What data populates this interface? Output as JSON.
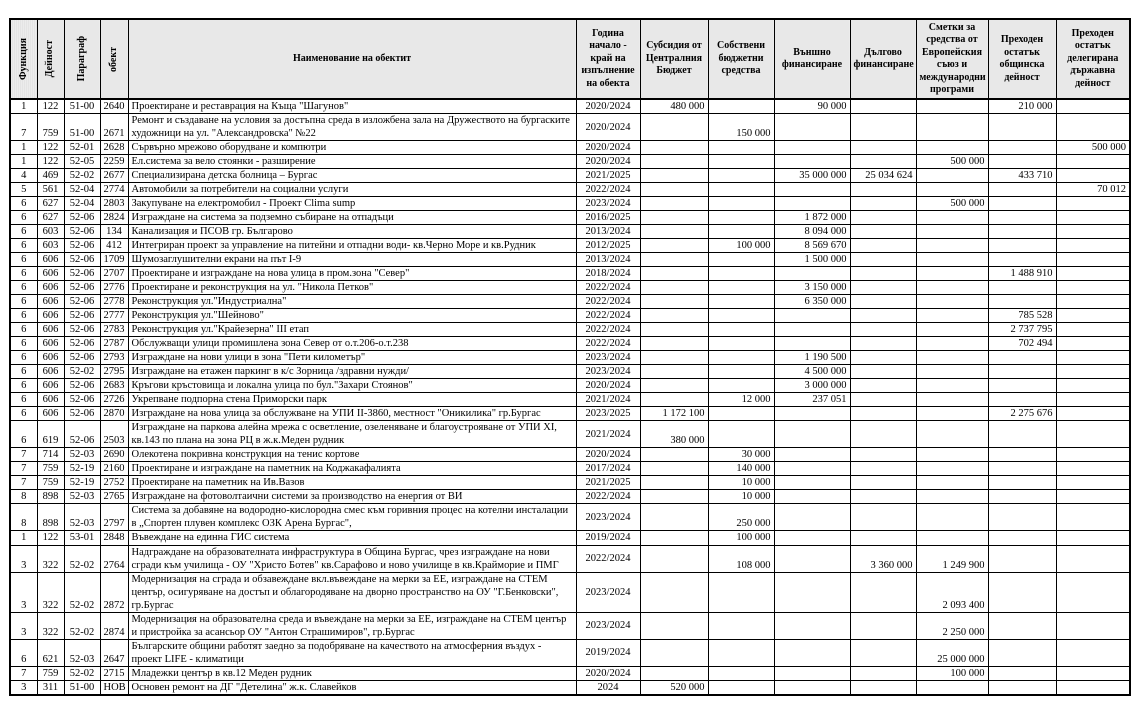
{
  "table": {
    "columns": [
      "Функция",
      "Дейност",
      "Параграф",
      "обект",
      "Наименование на обектит",
      "Година начало - край на изпълнение на обекта",
      "Субсидия от Централния Бюджет",
      "Собствени бюджетни средства",
      "Външно финансиране",
      "Дългово финансиране",
      "Сметки за средства от Европейския съюз и международни програми",
      "Преходен остатък общинска дейност",
      "Преходен остатък делегирана държавна дейност"
    ],
    "column_keys": [
      "function",
      "activity",
      "paragraph",
      "object",
      "object-name",
      "years",
      "subsidy-central-budget",
      "own-budget-funds",
      "external-financing",
      "debt-financing",
      "eu-and-international-funds",
      "carryover-municipal",
      "carryover-state"
    ],
    "rows": [
      [
        "1",
        "122",
        "51-00",
        "2640",
        "Проектиране и реставрация на Къща \"Шагунов\"",
        "2020/2024",
        "480 000",
        "",
        "90 000",
        "",
        "",
        "210 000",
        ""
      ],
      [
        "7",
        "759",
        "51-00",
        "2671",
        "Ремонт и създаване на условия за достъпна среда в изложбена зала на Дружеството на бургаските художници на ул. \"Александровска\" №22",
        "2020/2024",
        "",
        "150 000",
        "",
        "",
        "",
        "",
        ""
      ],
      [
        "1",
        "122",
        "52-01",
        "2628",
        "Сървърно мрежово оборудване и компютри",
        "2020/2024",
        "",
        "",
        "",
        "",
        "",
        "",
        "500 000"
      ],
      [
        "1",
        "122",
        "52-05",
        "2259",
        "Ел.система за вело стоянки - разширение",
        "2020/2024",
        "",
        "",
        "",
        "",
        "500 000",
        "",
        ""
      ],
      [
        "4",
        "469",
        "52-02",
        "2677",
        "Специализирана детска болница – Бургас",
        "2021/2025",
        "",
        "",
        "35 000 000",
        "25 034 624",
        "",
        "433 710",
        ""
      ],
      [
        "5",
        "561",
        "52-04",
        "2774",
        "Автомобили за потребители на социални услуги",
        "2022/2024",
        "",
        "",
        "",
        "",
        "",
        "",
        "70 012"
      ],
      [
        "6",
        "627",
        "52-04",
        "2803",
        "Закупуване на електромобил - Проект Clima sump",
        "2023/2024",
        "",
        "",
        "",
        "",
        "500 000",
        "",
        ""
      ],
      [
        "6",
        "627",
        "52-06",
        "2824",
        "Изграждане на система за подземно събиране на отпадъци",
        "2016/2025",
        "",
        "",
        "1 872 000",
        "",
        "",
        "",
        ""
      ],
      [
        "6",
        "603",
        "52-06",
        "134",
        "Канализация и ПСОВ гр. Българово",
        "2013/2024",
        "",
        "",
        "8 094 000",
        "",
        "",
        "",
        ""
      ],
      [
        "6",
        "603",
        "52-06",
        "412",
        "Интегриран проект за управление на питейни и отпадни води- кв.Черно Море и кв.Рудник",
        "2012/2025",
        "",
        "100 000",
        "8 569 670",
        "",
        "",
        "",
        ""
      ],
      [
        "6",
        "606",
        "52-06",
        "1709",
        "Шумозаглушителни екрани на път I-9",
        "2013/2024",
        "",
        "",
        "1 500 000",
        "",
        "",
        "",
        ""
      ],
      [
        "6",
        "606",
        "52-06",
        "2707",
        "Проектиране и изграждане на нова улица в пром.зона \"Север\"",
        "2018/2024",
        "",
        "",
        "",
        "",
        "",
        "1 488 910",
        ""
      ],
      [
        "6",
        "606",
        "52-06",
        "2776",
        "Проектиране и реконструкция на ул. \"Никола Петков\"",
        "2022/2024",
        "",
        "",
        "3 150 000",
        "",
        "",
        "",
        ""
      ],
      [
        "6",
        "606",
        "52-06",
        "2778",
        "Реконструкция ул.\"Индустриална\"",
        "2022/2024",
        "",
        "",
        "6 350 000",
        "",
        "",
        "",
        ""
      ],
      [
        "6",
        "606",
        "52-06",
        "2777",
        "Реконструкция ул.\"Шейново\"",
        "2022/2024",
        "",
        "",
        "",
        "",
        "",
        "785 528",
        ""
      ],
      [
        "6",
        "606",
        "52-06",
        "2783",
        "Реконструкция ул.\"Крайезерна\" III етап",
        "2022/2024",
        "",
        "",
        "",
        "",
        "",
        "2 737 795",
        ""
      ],
      [
        "6",
        "606",
        "52-06",
        "2787",
        "Обслужващи улици промишлена зона Север от о.т.206-о.т.238",
        "2022/2024",
        "",
        "",
        "",
        "",
        "",
        "702 494",
        ""
      ],
      [
        "6",
        "606",
        "52-06",
        "2793",
        "Изграждане на нови улици в зона \"Пети километър\"",
        "2023/2024",
        "",
        "",
        "1 190 500",
        "",
        "",
        "",
        ""
      ],
      [
        "6",
        "606",
        "52-02",
        "2795",
        "Изграждане на етажен паркинг в к/с Зорница /здравни нужди/",
        "2023/2024",
        "",
        "",
        "4 500 000",
        "",
        "",
        "",
        ""
      ],
      [
        "6",
        "606",
        "52-06",
        "2683",
        "Кръгови кръстовища и локална улица по бул.\"Захари Стоянов\"",
        "2020/2024",
        "",
        "",
        "3 000 000",
        "",
        "",
        "",
        ""
      ],
      [
        "6",
        "606",
        "52-06",
        "2726",
        "Укрепване подпорна стена Приморски парк",
        "2021/2024",
        "",
        "12 000",
        "237 051",
        "",
        "",
        "",
        ""
      ],
      [
        "6",
        "606",
        "52-06",
        "2870",
        "Изграждане на нова улица за обслужване на УПИ II-3860, местност \"Оникилика\" гр.Бургас",
        "2023/2025",
        "1 172 100",
        "",
        "",
        "",
        "",
        "2 275 676",
        ""
      ],
      [
        "6",
        "619",
        "52-06",
        "2503",
        "Изграждане на паркова алейна мрежа с осветление, озеленяване и благоустрояване от УПИ XI, кв.143 по плана на зона РЦ в ж.к.Меден рудник",
        "2021/2024",
        "380 000",
        "",
        "",
        "",
        "",
        "",
        ""
      ],
      [
        "7",
        "714",
        "52-03",
        "2690",
        "Олекотена покривна конструкция на тенис кортове",
        "2020/2024",
        "",
        "30 000",
        "",
        "",
        "",
        "",
        ""
      ],
      [
        "7",
        "759",
        "52-19",
        "2160",
        "Проектиране и изграждане на паметник на Коджакафалията",
        "2017/2024",
        "",
        "140 000",
        "",
        "",
        "",
        "",
        ""
      ],
      [
        "7",
        "759",
        "52-19",
        "2752",
        "Проектиране на паметник на Ив.Вазов",
        "2021/2025",
        "",
        "10 000",
        "",
        "",
        "",
        "",
        ""
      ],
      [
        "8",
        "898",
        "52-03",
        "2765",
        "Изграждане на фотоволтаични системи за производство на енергия от ВИ",
        "2022/2024",
        "",
        "10 000",
        "",
        "",
        "",
        "",
        ""
      ],
      [
        "8",
        "898",
        "52-03",
        "2797",
        "Система за добавяне на водородно-кислородна смес към горивния процес на котелни инсталации в „Спортен плувен комплекс ОЗК Арена Бургас\",",
        "2023/2024",
        "",
        "250 000",
        "",
        "",
        "",
        "",
        ""
      ],
      [
        "1",
        "122",
        "53-01",
        "2848",
        "Въвеждане на единна ГИС система",
        "2019/2024",
        "",
        "100 000",
        "",
        "",
        "",
        "",
        ""
      ],
      [
        "3",
        "322",
        "52-02",
        "2764",
        "Надграждане на образователната инфраструктура в Община Бургас, чрез изграждане на нови сгради към училища - ОУ \"Христо Ботев\" кв.Сарафово и ново училище в кв.Крайморие и ПМГ",
        "2022/2024",
        "",
        "108 000",
        "",
        "3 360 000",
        "1 249 900",
        "",
        ""
      ],
      [
        "3",
        "322",
        "52-02",
        "2872",
        "Модернизация на сграда и обзавеждане вкл.въвеждане на мерки за ЕЕ, изграждане на СТЕМ център, осигуряване на достъп и облагородяване на дворно пространство на ОУ \"Г.Бенковски\", гр.Бургас",
        "2023/2024",
        "",
        "",
        "",
        "",
        "2 093 400",
        "",
        ""
      ],
      [
        "3",
        "322",
        "52-02",
        "2874",
        "Модернизация на образователна среда и въвеждане на мерки за ЕЕ, изграждане на СТЕМ център и пристройка за асансьор ОУ \"Антон Страшимиров\", гр.Бургас",
        "2023/2024",
        "",
        "",
        "",
        "",
        "2 250 000",
        "",
        ""
      ],
      [
        "6",
        "621",
        "52-03",
        "2647",
        "Българските общини работят заедно за подобряване на качеството на атмосферния въздух - проект LIFE - климатици",
        "2019/2024",
        "",
        "",
        "",
        "",
        "25 000 000",
        "",
        ""
      ],
      [
        "7",
        "759",
        "52-02",
        "2715",
        "Младежки център в кв.12 Меден рудник",
        "2020/2024",
        "",
        "",
        "",
        "",
        "100 000",
        "",
        ""
      ],
      [
        "3",
        "311",
        "51-00",
        "НОВ",
        "Основен ремонт на ДГ \"Детелина\" ж.к. Славейков",
        "2024",
        "520 000",
        "",
        "",
        "",
        "",
        "",
        ""
      ]
    ]
  }
}
